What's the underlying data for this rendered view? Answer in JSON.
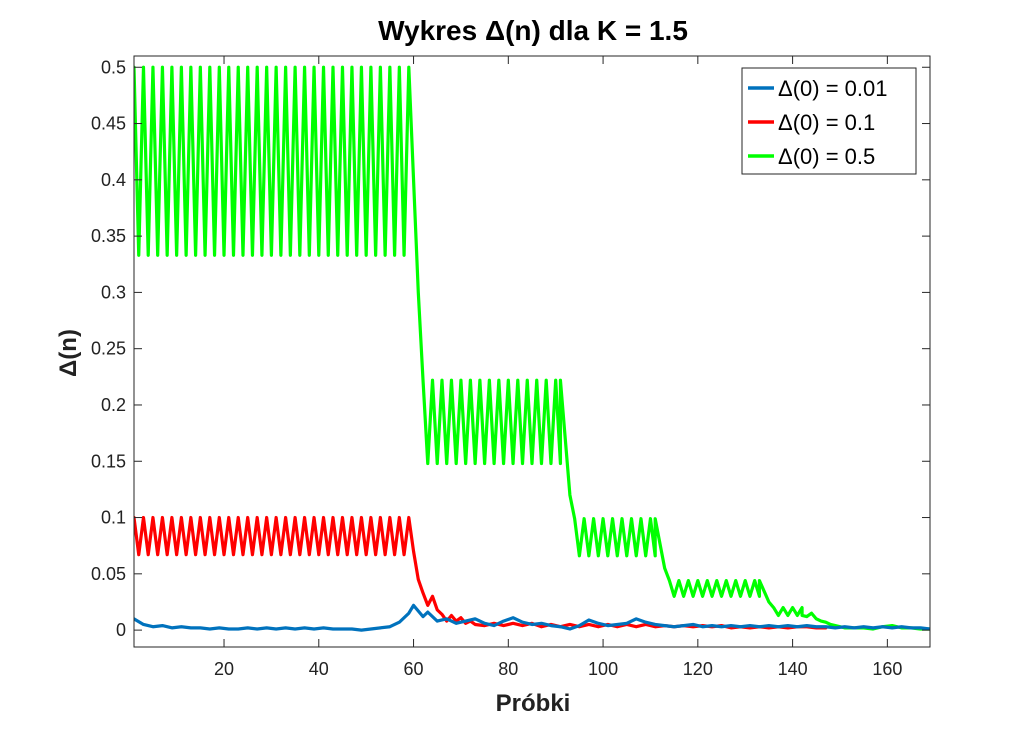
{
  "chart_data": {
    "type": "line",
    "title": "Wykres Δ(n) dla K = 1.5",
    "xlabel": "Próbki",
    "ylabel": "Δ(n)",
    "xlim": [
      1,
      169
    ],
    "ylim": [
      -0.015,
      0.51
    ],
    "xticks": [
      20,
      40,
      60,
      80,
      100,
      120,
      140,
      160
    ],
    "yticks": [
      0,
      0.05,
      0.1,
      0.15,
      0.2,
      0.25,
      0.3,
      0.35,
      0.4,
      0.45,
      0.5
    ],
    "ytick_labels": [
      "0",
      "0.05",
      "0.1",
      "0.15",
      "0.2",
      "0.25",
      "0.3",
      "0.35",
      "0.4",
      "0.45",
      "0.5"
    ],
    "grid": false,
    "legend_position": "top-right",
    "series": [
      {
        "name": "Δ(0) = 0.01",
        "color": "#0072BD",
        "segments": [
          {
            "type": "points",
            "points": [
              [
                1,
                0.01
              ],
              [
                3,
                0.005
              ],
              [
                5,
                0.003
              ],
              [
                7,
                0.004
              ],
              [
                9,
                0.002
              ],
              [
                11,
                0.003
              ],
              [
                13,
                0.002
              ],
              [
                15,
                0.002
              ],
              [
                17,
                0.001
              ],
              [
                19,
                0.002
              ],
              [
                21,
                0.001
              ],
              [
                23,
                0.001
              ],
              [
                25,
                0.002
              ],
              [
                27,
                0.001
              ],
              [
                29,
                0.002
              ],
              [
                31,
                0.001
              ],
              [
                33,
                0.002
              ],
              [
                35,
                0.001
              ],
              [
                37,
                0.002
              ],
              [
                39,
                0.001
              ],
              [
                41,
                0.002
              ],
              [
                43,
                0.001
              ],
              [
                45,
                0.001
              ],
              [
                47,
                0.001
              ],
              [
                49,
                0.0
              ],
              [
                51,
                0.001
              ],
              [
                53,
                0.002
              ],
              [
                55,
                0.003
              ],
              [
                57,
                0.007
              ],
              [
                59,
                0.015
              ],
              [
                60,
                0.022
              ],
              [
                62,
                0.012
              ],
              [
                63,
                0.016
              ],
              [
                65,
                0.008
              ],
              [
                67,
                0.01
              ],
              [
                69,
                0.006
              ],
              [
                71,
                0.008
              ],
              [
                73,
                0.01
              ],
              [
                75,
                0.006
              ],
              [
                77,
                0.004
              ],
              [
                79,
                0.008
              ],
              [
                81,
                0.011
              ],
              [
                83,
                0.007
              ],
              [
                85,
                0.005
              ],
              [
                87,
                0.006
              ],
              [
                89,
                0.004
              ],
              [
                91,
                0.003
              ],
              [
                93,
                0.001
              ],
              [
                95,
                0.004
              ],
              [
                97,
                0.009
              ],
              [
                99,
                0.006
              ],
              [
                101,
                0.004
              ],
              [
                103,
                0.005
              ],
              [
                105,
                0.006
              ],
              [
                107,
                0.01
              ],
              [
                109,
                0.007
              ],
              [
                111,
                0.005
              ],
              [
                113,
                0.004
              ],
              [
                115,
                0.003
              ],
              [
                117,
                0.004
              ],
              [
                119,
                0.005
              ],
              [
                121,
                0.003
              ],
              [
                123,
                0.004
              ],
              [
                125,
                0.003
              ],
              [
                127,
                0.004
              ],
              [
                129,
                0.003
              ],
              [
                131,
                0.004
              ],
              [
                133,
                0.003
              ],
              [
                135,
                0.004
              ],
              [
                137,
                0.003
              ],
              [
                139,
                0.004
              ],
              [
                141,
                0.003
              ],
              [
                143,
                0.004
              ],
              [
                145,
                0.003
              ],
              [
                147,
                0.003
              ],
              [
                149,
                0.002
              ],
              [
                151,
                0.003
              ],
              [
                153,
                0.002
              ],
              [
                155,
                0.003
              ],
              [
                157,
                0.002
              ],
              [
                159,
                0.003
              ],
              [
                161,
                0.002
              ],
              [
                163,
                0.003
              ],
              [
                165,
                0.002
              ],
              [
                167,
                0.002
              ],
              [
                169,
                0.001
              ]
            ]
          }
        ]
      },
      {
        "name": "Δ(0) = 0.1",
        "color": "#FF0000",
        "segments": [
          {
            "type": "oscillation",
            "x_start": 1,
            "x_end": 59,
            "high": 0.1,
            "low": 0.067
          },
          {
            "type": "points",
            "points": [
              [
                59,
                0.1
              ],
              [
                60,
                0.07
              ],
              [
                61,
                0.045
              ],
              [
                62,
                0.033
              ],
              [
                63,
                0.022
              ],
              [
                64,
                0.03
              ],
              [
                65,
                0.018
              ],
              [
                66,
                0.014
              ],
              [
                67,
                0.008
              ],
              [
                68,
                0.013
              ],
              [
                69,
                0.008
              ],
              [
                70,
                0.011
              ],
              [
                71,
                0.006
              ],
              [
                72,
                0.008
              ],
              [
                73,
                0.005
              ],
              [
                75,
                0.004
              ],
              [
                77,
                0.006
              ],
              [
                79,
                0.004
              ],
              [
                81,
                0.006
              ],
              [
                83,
                0.004
              ],
              [
                85,
                0.006
              ],
              [
                87,
                0.003
              ],
              [
                89,
                0.005
              ],
              [
                91,
                0.003
              ],
              [
                93,
                0.005
              ],
              [
                95,
                0.003
              ],
              [
                97,
                0.005
              ],
              [
                99,
                0.003
              ],
              [
                101,
                0.005
              ],
              [
                103,
                0.003
              ],
              [
                105,
                0.005
              ],
              [
                107,
                0.003
              ],
              [
                109,
                0.005
              ],
              [
                111,
                0.003
              ],
              [
                113,
                0.004
              ],
              [
                115,
                0.003
              ],
              [
                117,
                0.004
              ],
              [
                119,
                0.003
              ],
              [
                121,
                0.004
              ],
              [
                123,
                0.003
              ],
              [
                125,
                0.004
              ],
              [
                127,
                0.002
              ],
              [
                129,
                0.003
              ],
              [
                131,
                0.002
              ],
              [
                133,
                0.003
              ],
              [
                135,
                0.002
              ],
              [
                137,
                0.003
              ],
              [
                139,
                0.002
              ],
              [
                141,
                0.003
              ],
              [
                143,
                0.003
              ],
              [
                145,
                0.002
              ],
              [
                147,
                0.002
              ]
            ]
          }
        ]
      },
      {
        "name": "Δ(0) = 0.5",
        "color": "#00FF00",
        "segments": [
          {
            "type": "oscillation",
            "x_start": 1,
            "x_end": 59,
            "high": 0.5,
            "low": 0.333
          },
          {
            "type": "points",
            "points": [
              [
                59,
                0.5
              ],
              [
                61,
                0.3
              ],
              [
                62,
                0.222
              ]
            ]
          },
          {
            "type": "oscillation",
            "x_start": 62,
            "x_end": 91,
            "high": 0.222,
            "low": 0.148
          },
          {
            "type": "points",
            "points": [
              [
                91,
                0.222
              ],
              [
                93,
                0.12
              ],
              [
                94,
                0.099
              ]
            ]
          },
          {
            "type": "oscillation",
            "x_start": 94,
            "x_end": 111,
            "high": 0.099,
            "low": 0.066
          },
          {
            "type": "points",
            "points": [
              [
                111,
                0.099
              ],
              [
                113,
                0.055
              ],
              [
                114,
                0.044
              ]
            ]
          },
          {
            "type": "oscillation",
            "x_start": 114,
            "x_end": 133,
            "high": 0.044,
            "low": 0.03
          },
          {
            "type": "points",
            "points": [
              [
                133,
                0.044
              ],
              [
                135,
                0.025
              ],
              [
                136,
                0.02
              ]
            ]
          },
          {
            "type": "oscillation",
            "x_start": 136,
            "x_end": 142,
            "high": 0.02,
            "low": 0.013
          },
          {
            "type": "points",
            "points": [
              [
                142,
                0.013
              ],
              [
                143,
                0.012
              ],
              [
                144,
                0.015
              ],
              [
                145,
                0.01
              ],
              [
                146,
                0.008
              ],
              [
                147,
                0.007
              ],
              [
                148,
                0.005
              ],
              [
                149,
                0.004
              ],
              [
                150,
                0.003
              ],
              [
                151,
                0.002
              ],
              [
                153,
                0.002
              ],
              [
                155,
                0.002
              ],
              [
                157,
                0.001
              ],
              [
                159,
                0.003
              ],
              [
                161,
                0.004
              ],
              [
                163,
                0.002
              ],
              [
                165,
                0.002
              ],
              [
                167,
                0.001
              ],
              [
                169,
                0.001
              ]
            ]
          }
        ]
      }
    ]
  }
}
